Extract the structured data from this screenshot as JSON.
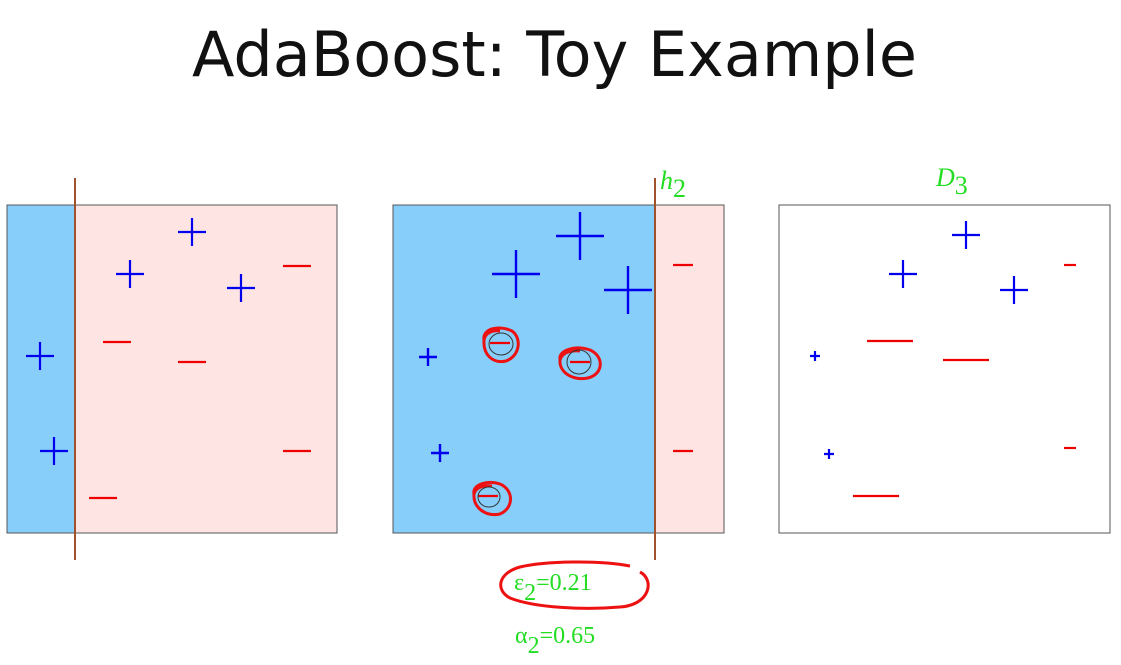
{
  "title": "AdaBoost: Toy Example",
  "colors": {
    "left_region": "#87CEFA",
    "right_region": "#FFE4E4",
    "boundary": "#A0522D",
    "positive": "#0000EE",
    "negative": "#EE0000",
    "annotation": "#22DD22",
    "circle_mark": "#EE1111"
  },
  "panels": [
    {
      "name": "round-1",
      "label": null,
      "shading": true,
      "points": [
        {
          "sign": "+",
          "weight": 1
        },
        {
          "sign": "+",
          "weight": 1
        },
        {
          "sign": "+",
          "weight": 1
        },
        {
          "sign": "+",
          "weight": 1
        },
        {
          "sign": "+",
          "weight": 1
        },
        {
          "sign": "-",
          "weight": 1
        },
        {
          "sign": "-",
          "weight": 1
        },
        {
          "sign": "-",
          "weight": 1
        },
        {
          "sign": "-",
          "weight": 1
        },
        {
          "sign": "-",
          "weight": 1
        }
      ]
    },
    {
      "name": "round-2",
      "label_main": "h",
      "label_sub": "2",
      "shading": true,
      "error_symbol": "ε",
      "error_sub": "2",
      "error_value": "=0.21",
      "alpha_symbol": "α",
      "alpha_sub": "2",
      "alpha_value": "=0.65",
      "misclassified_count": 3
    },
    {
      "name": "distribution-3",
      "label_main": "D",
      "label_sub": "3",
      "shading": false
    }
  ]
}
